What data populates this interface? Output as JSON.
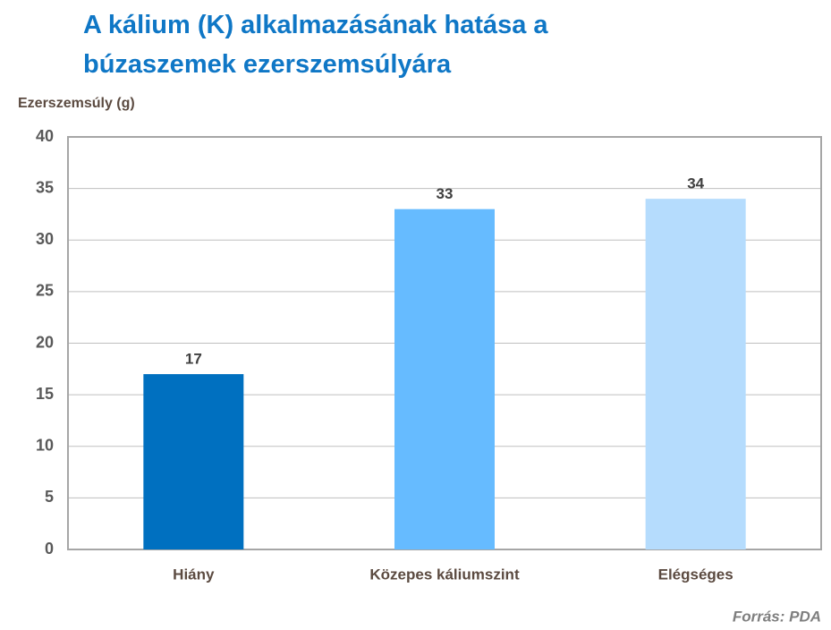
{
  "chart_data": {
    "type": "bar",
    "title": "A kálium (K) alkalmazásának hatása a búzaszemek ezerszemsúlyára",
    "y_label": "Ezerszemsúly (g)",
    "categories": [
      "Hiány",
      "Közepes káliumszint",
      "Elégséges"
    ],
    "values": [
      17,
      33,
      34
    ],
    "colors": [
      "#0070c0",
      "#66bbff",
      "#b5dcfd"
    ],
    "ylim": [
      0,
      40
    ],
    "yticks": [
      0,
      5,
      10,
      15,
      20,
      25,
      30,
      35,
      40
    ],
    "grid": true,
    "source": "Forrás: PDA"
  }
}
